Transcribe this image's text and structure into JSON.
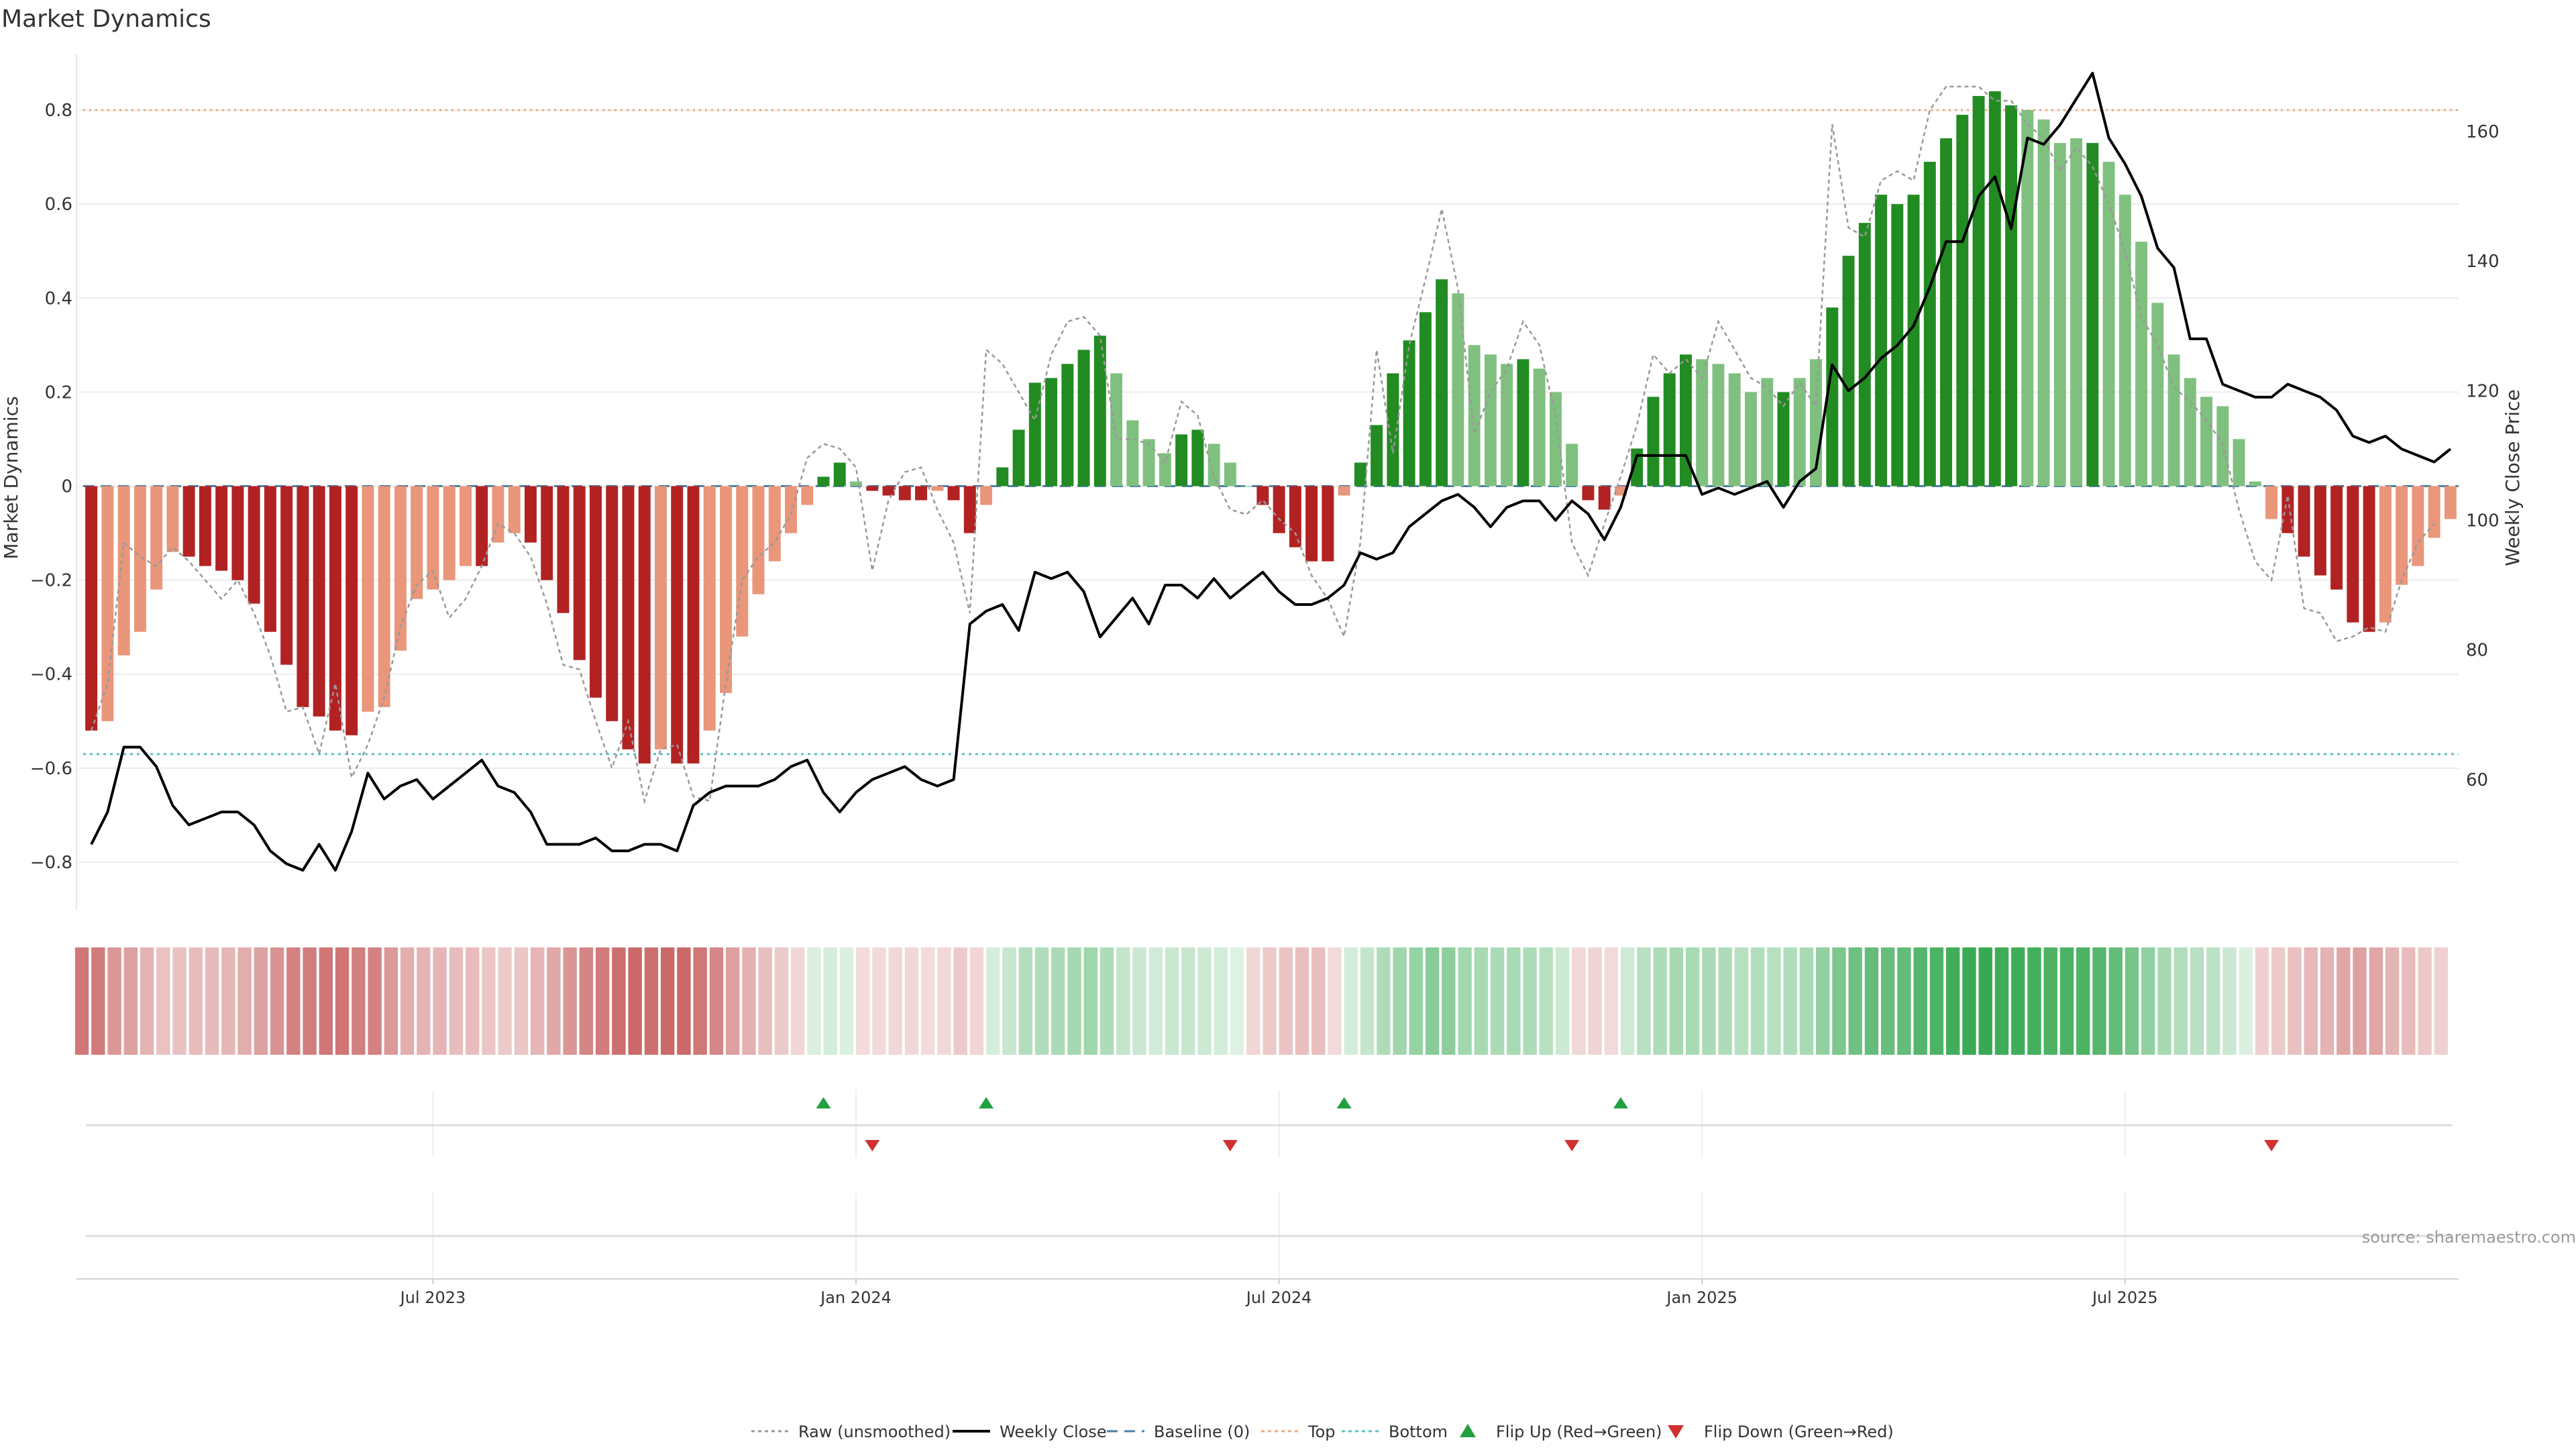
{
  "chart_data": {
    "type": "bar",
    "title": "Market Dynamics",
    "ylabel_left": "Market Dynamics",
    "ylabel_right": "Weekly Close Price",
    "source": "source: sharemaestro.com",
    "x_ticks": [
      "Jul 2023",
      "Jan 2024",
      "Jul 2024",
      "Jan 2025",
      "Jul 2025"
    ],
    "x_tick_weeks": [
      21,
      47,
      73,
      99,
      125
    ],
    "left_ticks": [
      "0.8",
      "0.6",
      "0.4",
      "0.2",
      "0",
      "−0.2",
      "−0.4",
      "−0.6",
      "−0.8"
    ],
    "left_tick_values": [
      0.8,
      0.6,
      0.4,
      0.2,
      0,
      -0.2,
      -0.4,
      -0.6,
      -0.8
    ],
    "right_ticks": [
      "160",
      "140",
      "120",
      "100",
      "80",
      "60"
    ],
    "right_tick_values": [
      160,
      140,
      120,
      100,
      80,
      60
    ],
    "ylim_left": [
      -0.9,
      0.92
    ],
    "ylim_right": [
      40,
      172
    ],
    "grid": true,
    "top_level": 0.8,
    "bottom_level": -0.57,
    "baseline": 0,
    "legend_position": "bottom-center",
    "legend": [
      {
        "label": "Raw (unsmoothed)",
        "kind": "dotted",
        "color": "#999999"
      },
      {
        "label": "Weekly Close",
        "kind": "line",
        "color": "#000000"
      },
      {
        "label": "Baseline (0)",
        "kind": "dashed",
        "color": "#4a7fa8"
      },
      {
        "label": "Top",
        "kind": "dotted",
        "color": "#f0a878"
      },
      {
        "label": "Bottom",
        "kind": "dotted",
        "color": "#5bc0c8"
      },
      {
        "label": "Flip Up (Red→Green)",
        "kind": "triangle-up",
        "color": "#22a040"
      },
      {
        "label": "Flip Down (Green→Red)",
        "kind": "triangle-down",
        "color": "#d03030"
      }
    ],
    "colors": {
      "dark_green": "#228b22",
      "light_green": "#7fc07f",
      "dark_red": "#b22222",
      "light_red": "#e9967a",
      "close_line": "#000000",
      "raw_line": "#999999",
      "top_line": "#f0a878",
      "bottom_line": "#5bc0c8",
      "baseline_line": "#4a7fa8"
    },
    "osc_values": [
      -0.52,
      -0.5,
      -0.36,
      -0.31,
      -0.22,
      -0.14,
      -0.15,
      -0.17,
      -0.18,
      -0.2,
      -0.25,
      -0.31,
      -0.38,
      -0.47,
      -0.49,
      -0.52,
      -0.53,
      -0.48,
      -0.47,
      -0.35,
      -0.24,
      -0.22,
      -0.2,
      -0.17,
      -0.17,
      -0.12,
      -0.1,
      -0.12,
      -0.2,
      -0.27,
      -0.37,
      -0.45,
      -0.5,
      -0.56,
      -0.59,
      -0.56,
      -0.59,
      -0.59,
      -0.52,
      -0.44,
      -0.32,
      -0.23,
      -0.16,
      -0.1,
      -0.04,
      0.02,
      0.05,
      0.01,
      -0.01,
      -0.02,
      -0.03,
      -0.03,
      -0.01,
      -0.03,
      -0.1,
      -0.04,
      0.04,
      0.12,
      0.22,
      0.23,
      0.26,
      0.29,
      0.32,
      0.24,
      0.14,
      0.1,
      0.07,
      0.11,
      0.12,
      0.09,
      0.05,
      0.0,
      -0.04,
      -0.1,
      -0.13,
      -0.16,
      -0.16,
      -0.02,
      0.05,
      0.13,
      0.24,
      0.31,
      0.37,
      0.44,
      0.41,
      0.3,
      0.28,
      0.26,
      0.27,
      0.25,
      0.2,
      0.09,
      -0.03,
      -0.05,
      -0.02,
      0.08,
      0.19,
      0.24,
      0.28,
      0.27,
      0.26,
      0.24,
      0.2,
      0.23,
      0.2,
      0.23,
      0.27,
      0.38,
      0.49,
      0.56,
      0.62,
      0.6,
      0.62,
      0.69,
      0.74,
      0.79,
      0.83,
      0.84,
      0.81,
      0.8,
      0.78,
      0.73,
      0.74,
      0.73,
      0.69,
      0.62,
      0.52,
      0.39,
      0.28,
      0.23,
      0.19,
      0.17,
      0.1,
      0.01,
      -0.07,
      -0.1,
      -0.15,
      -0.19,
      -0.22,
      -0.29,
      -0.31,
      -0.29,
      -0.21,
      -0.17,
      -0.11,
      -0.07
    ],
    "osc_strength": [
      "S",
      "W",
      "W",
      "W",
      "W",
      "W",
      "S",
      "S",
      "S",
      "S",
      "S",
      "S",
      "S",
      "S",
      "S",
      "S",
      "S",
      "W",
      "W",
      "W",
      "W",
      "W",
      "W",
      "W",
      "S",
      "W",
      "W",
      "S",
      "S",
      "S",
      "S",
      "S",
      "S",
      "S",
      "S",
      "W",
      "S",
      "S",
      "W",
      "W",
      "W",
      "W",
      "W",
      "W",
      "W",
      "S",
      "S",
      "W",
      "S",
      "S",
      "S",
      "S",
      "W",
      "S",
      "S",
      "W",
      "S",
      "S",
      "S",
      "S",
      "S",
      "S",
      "S",
      "W",
      "W",
      "W",
      "W",
      "S",
      "S",
      "W",
      "W",
      "W",
      "S",
      "S",
      "S",
      "S",
      "S",
      "W",
      "S",
      "S",
      "S",
      "S",
      "S",
      "S",
      "W",
      "W",
      "W",
      "W",
      "S",
      "W",
      "W",
      "W",
      "S",
      "S",
      "W",
      "S",
      "S",
      "S",
      "S",
      "W",
      "W",
      "W",
      "W",
      "W",
      "S",
      "W",
      "W",
      "S",
      "S",
      "S",
      "S",
      "S",
      "S",
      "S",
      "S",
      "S",
      "S",
      "S",
      "S",
      "W",
      "W",
      "W",
      "W",
      "S",
      "W",
      "W",
      "W",
      "W",
      "W",
      "W",
      "W",
      "W",
      "W",
      "W",
      "W",
      "S",
      "S",
      "S",
      "S",
      "S",
      "S",
      "W",
      "W",
      "W",
      "W",
      "W"
    ],
    "raw_values": [
      -0.52,
      -0.42,
      -0.12,
      -0.15,
      -0.17,
      -0.13,
      -0.16,
      -0.2,
      -0.24,
      -0.2,
      -0.27,
      -0.36,
      -0.48,
      -0.47,
      -0.57,
      -0.42,
      -0.62,
      -0.55,
      -0.45,
      -0.3,
      -0.21,
      -0.18,
      -0.28,
      -0.24,
      -0.17,
      -0.08,
      -0.1,
      -0.15,
      -0.25,
      -0.38,
      -0.39,
      -0.5,
      -0.6,
      -0.5,
      -0.67,
      -0.56,
      -0.55,
      -0.66,
      -0.67,
      -0.42,
      -0.2,
      -0.15,
      -0.12,
      -0.06,
      0.06,
      0.09,
      0.08,
      0.04,
      -0.18,
      -0.03,
      0.03,
      0.04,
      -0.05,
      -0.12,
      -0.27,
      0.29,
      0.26,
      0.2,
      0.14,
      0.28,
      0.35,
      0.36,
      0.32,
      0.1,
      0.1,
      0.09,
      0.05,
      0.18,
      0.15,
      0.02,
      -0.05,
      -0.06,
      -0.03,
      -0.07,
      -0.1,
      -0.19,
      -0.24,
      -0.32,
      -0.12,
      0.29,
      0.07,
      0.3,
      0.44,
      0.59,
      0.42,
      0.11,
      0.2,
      0.25,
      0.35,
      0.3,
      0.15,
      -0.12,
      -0.19,
      -0.08,
      0.02,
      0.13,
      0.28,
      0.24,
      0.27,
      0.23,
      0.35,
      0.29,
      0.23,
      0.21,
      0.17,
      0.22,
      0.17,
      0.77,
      0.55,
      0.53,
      0.65,
      0.67,
      0.65,
      0.8,
      0.85,
      0.85,
      0.85,
      0.82,
      0.82,
      0.77,
      0.74,
      0.67,
      0.72,
      0.68,
      0.6,
      0.5,
      0.36,
      0.3,
      0.21,
      0.18,
      0.14,
      0.09,
      -0.05,
      -0.16,
      -0.2,
      -0.02,
      -0.26,
      -0.27,
      -0.33,
      -0.32,
      -0.3,
      -0.31,
      -0.2,
      -0.12,
      -0.08
    ],
    "close_values": [
      50,
      55,
      65,
      65,
      62,
      56,
      53,
      54,
      55,
      55,
      53,
      49,
      47,
      46,
      50,
      46,
      52,
      61,
      57,
      59,
      60,
      57,
      59,
      61,
      63,
      59,
      58,
      55,
      50,
      50,
      50,
      51,
      49,
      49,
      50,
      50,
      49,
      56,
      58,
      59,
      59,
      59,
      60,
      62,
      63,
      58,
      55,
      58,
      60,
      61,
      62,
      60,
      59,
      60,
      84,
      86,
      87,
      83,
      92,
      91,
      92,
      89,
      82,
      85,
      88,
      84,
      90,
      90,
      88,
      91,
      88,
      90,
      92,
      89,
      87,
      87,
      88,
      90,
      95,
      94,
      95,
      99,
      101,
      103,
      104,
      102,
      99,
      102,
      103,
      103,
      100,
      103,
      101,
      97,
      102,
      110,
      110,
      110,
      110,
      104,
      105,
      104,
      105,
      106,
      102,
      106,
      108,
      124,
      120,
      122,
      125,
      127,
      130,
      136,
      143,
      143,
      150,
      153,
      145,
      159,
      158,
      161,
      165,
      169,
      159,
      155,
      150,
      142,
      139,
      128,
      128,
      121,
      120,
      119,
      119,
      121,
      120,
      119,
      117,
      113,
      112,
      113,
      111,
      110,
      109,
      111
    ]
  },
  "heat_strip": {
    "opacity_scale": [
      0.15,
      0.9
    ]
  },
  "flips": {
    "up_weeks": [
      45,
      55,
      77,
      94
    ],
    "down_weeks": [
      48,
      70,
      91,
      134
    ]
  },
  "top": "Top",
  "bottom": "Bottom"
}
